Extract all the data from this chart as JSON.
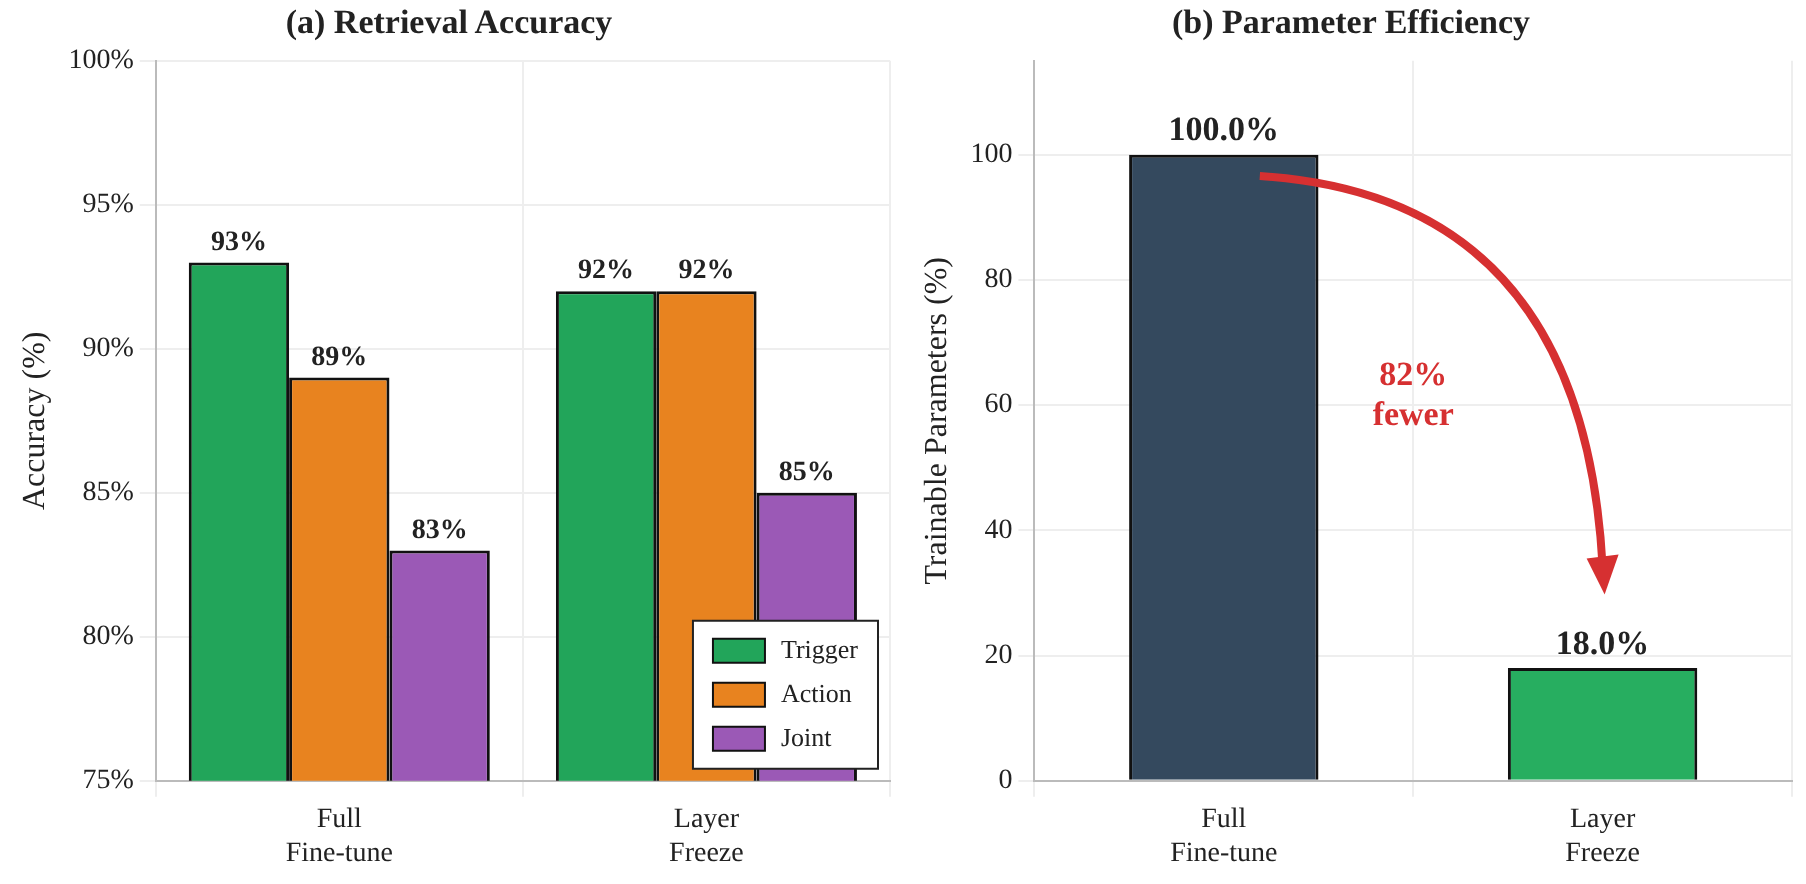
{
  "chart_data": [
    {
      "type": "bar",
      "title": "(a) Retrieval Accuracy",
      "ylabel": "Accuracy (%)",
      "categories": [
        "Full\nFine-tune",
        "Layer\nFreeze"
      ],
      "series": [
        {
          "name": "Trigger",
          "color": "#22a55a",
          "values": [
            93,
            92
          ],
          "value_labels": [
            "93%",
            "92%"
          ]
        },
        {
          "name": "Action",
          "color": "#e8831f",
          "values": [
            89,
            92
          ],
          "value_labels": [
            "89%",
            "92%"
          ]
        },
        {
          "name": "Joint",
          "color": "#9b59b6",
          "values": [
            83,
            85
          ],
          "value_labels": [
            "83%",
            "85%"
          ]
        }
      ],
      "ylim": [
        75,
        100
      ],
      "yticks": [
        {
          "value": 75,
          "label": "75%"
        },
        {
          "value": 80,
          "label": "80%"
        },
        {
          "value": 85,
          "label": "85%"
        },
        {
          "value": 90,
          "label": "90%"
        },
        {
          "value": 95,
          "label": "95%"
        },
        {
          "value": 100,
          "label": "100%"
        }
      ],
      "grid": true,
      "legend": "bottom right"
    },
    {
      "type": "bar",
      "title": "(b) Parameter Efficiency",
      "ylabel": "Trainable Parameters (%)",
      "categories": [
        "Full\nFine-tune",
        "Layer\nFreeze"
      ],
      "values": [
        100,
        18
      ],
      "colors": [
        "#34495e",
        "#27ae60"
      ],
      "value_labels": [
        "100.0%",
        "18.0%"
      ],
      "ylim": [
        0,
        115
      ],
      "yticks": [
        0,
        20,
        40,
        60,
        80,
        100
      ],
      "grid": true,
      "annotations": [
        "82%\nfewer"
      ]
    }
  ]
}
